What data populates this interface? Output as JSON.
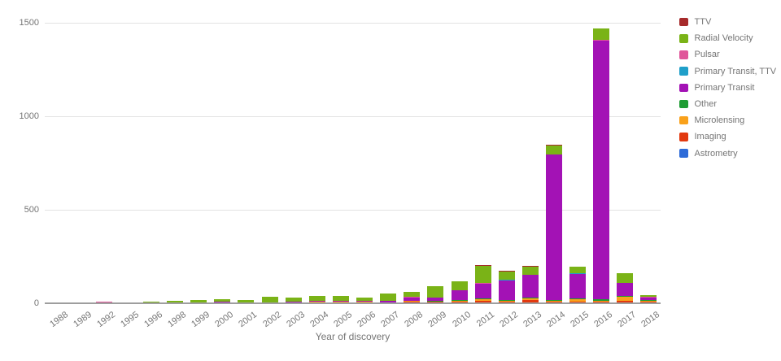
{
  "chart_data": {
    "type": "bar",
    "stacked": true,
    "title": "",
    "xlabel": "Year of discovery",
    "ylabel": "",
    "ylim": [
      0,
      1500
    ],
    "yticks": [
      0,
      500,
      1000,
      1500
    ],
    "grid": true,
    "legend_position": "right",
    "legend_order_top_to_bottom": [
      "TTV",
      "Radial Velocity",
      "Pulsar",
      "Primary Transit, TTV",
      "Primary Transit",
      "Other",
      "Microlensing",
      "Imaging",
      "Astrometry"
    ],
    "categories": [
      "1988",
      "1989",
      "1992",
      "1995",
      "1996",
      "1998",
      "1999",
      "2000",
      "2001",
      "2002",
      "2003",
      "2004",
      "2005",
      "2006",
      "2007",
      "2008",
      "2009",
      "2010",
      "2011",
      "2012",
      "2013",
      "2014",
      "2015",
      "2016",
      "2017",
      "2018"
    ],
    "series": [
      {
        "name": "Astrometry",
        "color": "#2E6BD8",
        "values": [
          0,
          0,
          0,
          0,
          0,
          0,
          0,
          0,
          0,
          0,
          0,
          0,
          0,
          0,
          0,
          0,
          0,
          0,
          0,
          0,
          1,
          0,
          0,
          0,
          0,
          0
        ]
      },
      {
        "name": "Imaging",
        "color": "#E2390F",
        "values": [
          0,
          0,
          0,
          0,
          0,
          1,
          0,
          0,
          0,
          1,
          1,
          2,
          2,
          1,
          1,
          6,
          5,
          5,
          8,
          5,
          10,
          4,
          5,
          4,
          9,
          4
        ]
      },
      {
        "name": "Microlensing",
        "color": "#F9A11B",
        "values": [
          0,
          0,
          0,
          0,
          0,
          0,
          0,
          0,
          0,
          0,
          0,
          2,
          2,
          2,
          1,
          4,
          3,
          6,
          10,
          8,
          14,
          5,
          12,
          6,
          22,
          8
        ]
      },
      {
        "name": "Other",
        "color": "#1E9C33",
        "values": [
          0,
          0,
          0,
          0,
          1,
          0,
          0,
          1,
          0,
          0,
          0,
          0,
          0,
          0,
          0,
          0,
          1,
          2,
          2,
          2,
          3,
          2,
          3,
          9,
          2,
          2
        ]
      },
      {
        "name": "Primary Transit",
        "color": "#A312B5",
        "values": [
          0,
          0,
          0,
          0,
          0,
          0,
          1,
          2,
          1,
          1,
          2,
          3,
          4,
          5,
          8,
          18,
          16,
          52,
          83,
          106,
          118,
          782,
          132,
          1385,
          70,
          16
        ]
      },
      {
        "name": "Primary Transit, TTV",
        "color": "#1F9FC9",
        "values": [
          0,
          0,
          0,
          0,
          0,
          0,
          0,
          0,
          0,
          0,
          0,
          0,
          0,
          0,
          0,
          0,
          0,
          0,
          1,
          1,
          0,
          0,
          3,
          0,
          0,
          0
        ]
      },
      {
        "name": "Pulsar",
        "color": "#E0569A",
        "values": [
          0,
          0,
          3,
          1,
          0,
          0,
          0,
          0,
          0,
          0,
          0,
          0,
          0,
          0,
          0,
          2,
          0,
          0,
          2,
          0,
          0,
          0,
          0,
          1,
          0,
          2
        ]
      },
      {
        "name": "Radial Velocity",
        "color": "#7AB317",
        "values": [
          1,
          1,
          0,
          1,
          5,
          6,
          12,
          15,
          12,
          30,
          25,
          26,
          28,
          20,
          36,
          25,
          63,
          50,
          95,
          46,
          47,
          48,
          35,
          60,
          55,
          6
        ]
      },
      {
        "name": "TTV",
        "color": "#A62A2B",
        "values": [
          0,
          0,
          0,
          0,
          0,
          0,
          0,
          0,
          0,
          0,
          0,
          0,
          0,
          0,
          0,
          0,
          0,
          0,
          1,
          1,
          2,
          2,
          0,
          0,
          0,
          0
        ]
      }
    ]
  },
  "palette": {
    "background": "#ffffff",
    "gridline": "#e3e3e3",
    "baseline": "#9e9e9e",
    "axis_text": "#757575"
  }
}
